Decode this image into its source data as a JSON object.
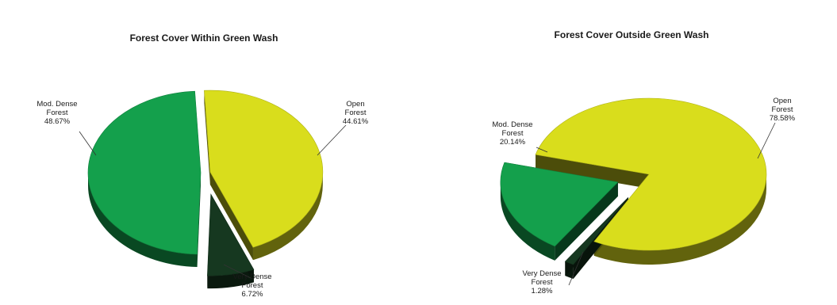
{
  "chart_data": [
    {
      "type": "pie",
      "title": "Forest Cover Within Green Wash",
      "slices": [
        {
          "name": "Open Forest",
          "value": 44.61,
          "value_label": "44.61%",
          "color": "#d9dd1c"
        },
        {
          "name": "Very Dense Forest",
          "value": 6.72,
          "value_label": "6.72%",
          "color": "#163820"
        },
        {
          "name": "Mod. Dense Forest",
          "value": 48.67,
          "value_label": "48.67%",
          "color": "#14a04c"
        }
      ]
    },
    {
      "type": "pie",
      "title": "Forest Cover Outside Green Wash",
      "slices": [
        {
          "name": "Open Forest",
          "value": 78.58,
          "value_label": "78.58%",
          "color": "#d9dd1c"
        },
        {
          "name": "Very Dense Forest",
          "value": 1.28,
          "value_label": "1.28%",
          "color": "#163820"
        },
        {
          "name": "Mod. Dense Forest",
          "value": 20.14,
          "value_label": "20.14%",
          "color": "#14a04c"
        }
      ]
    }
  ]
}
